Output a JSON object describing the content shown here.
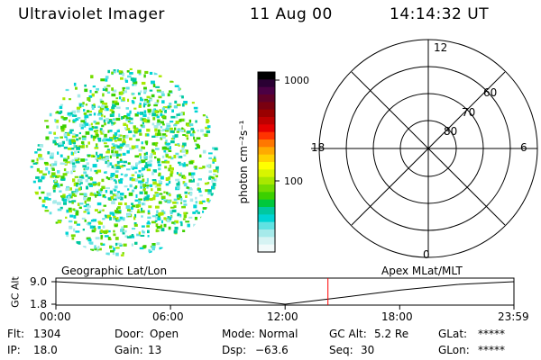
{
  "header": {
    "instrument": "Ultraviolet Imager",
    "date": "11 Aug 00",
    "time": "14:14:32 UT"
  },
  "colorbar": {
    "unit_label": "photon cm⁻²s⁻¹",
    "ticks": [
      "1000",
      "100"
    ],
    "colors": [
      "#000000",
      "#2a0033",
      "#4b0044",
      "#600028",
      "#7a0010",
      "#9a0000",
      "#be0000",
      "#e40000",
      "#ff3300",
      "#ff7700",
      "#ffaa00",
      "#ffd200",
      "#ffff00",
      "#d8f500",
      "#a8e800",
      "#74dc00",
      "#3cd000",
      "#00c83c",
      "#00c8a0",
      "#00d4d4",
      "#60e2e2",
      "#a6eaea",
      "#d6f3f3",
      "#f2fafa"
    ]
  },
  "polar_grid": {
    "lat_labels": [
      "80",
      "70",
      "60"
    ],
    "mlt_labels": {
      "top": "12",
      "left": "18",
      "right": "6",
      "bottom": "0"
    }
  },
  "timeline": {
    "left_label": "Geographic Lat/Lon",
    "right_label": "Apex MLat/MLT",
    "axis_label": "GC Alt",
    "y_ticks": [
      "9.0",
      "1.8"
    ],
    "x_ticks": [
      "00:00",
      "06:00",
      "12:00",
      "18:00",
      "23:59"
    ],
    "marker_color": "#ff0000"
  },
  "chart_data": {
    "type": "line",
    "title": "",
    "xlabel": "",
    "ylabel": "GC Alt",
    "x": [
      0,
      3,
      6,
      9,
      12,
      15,
      18,
      21,
      23.98
    ],
    "series": [
      {
        "values": [
          9.0,
          8.0,
          6.1,
          3.9,
          1.8,
          4.0,
          6.3,
          8.1,
          9.0
        ]
      }
    ],
    "xlim": [
      0,
      23.98
    ],
    "ylim": [
      1.8,
      9.0
    ],
    "current_time": 14.24
  },
  "info": {
    "flt_label": "Flt:",
    "flt": "1304",
    "door_label": "Door:",
    "door": "Open",
    "mode_label": "Mode:",
    "mode": "Normal",
    "gcalt_label": "GC Alt:",
    "gcalt": "5.2 Re",
    "glat_label": "GLat:",
    "glat": "*****",
    "ip_label": "IP:",
    "ip": "18.0",
    "gain_label": "Gain:",
    "gain": "13",
    "dsp_label": "Dsp:",
    "dsp": "−63.6",
    "seq_label": "Seq:",
    "seq": "30",
    "glon_label": "GLon:",
    "glon": "*****"
  }
}
